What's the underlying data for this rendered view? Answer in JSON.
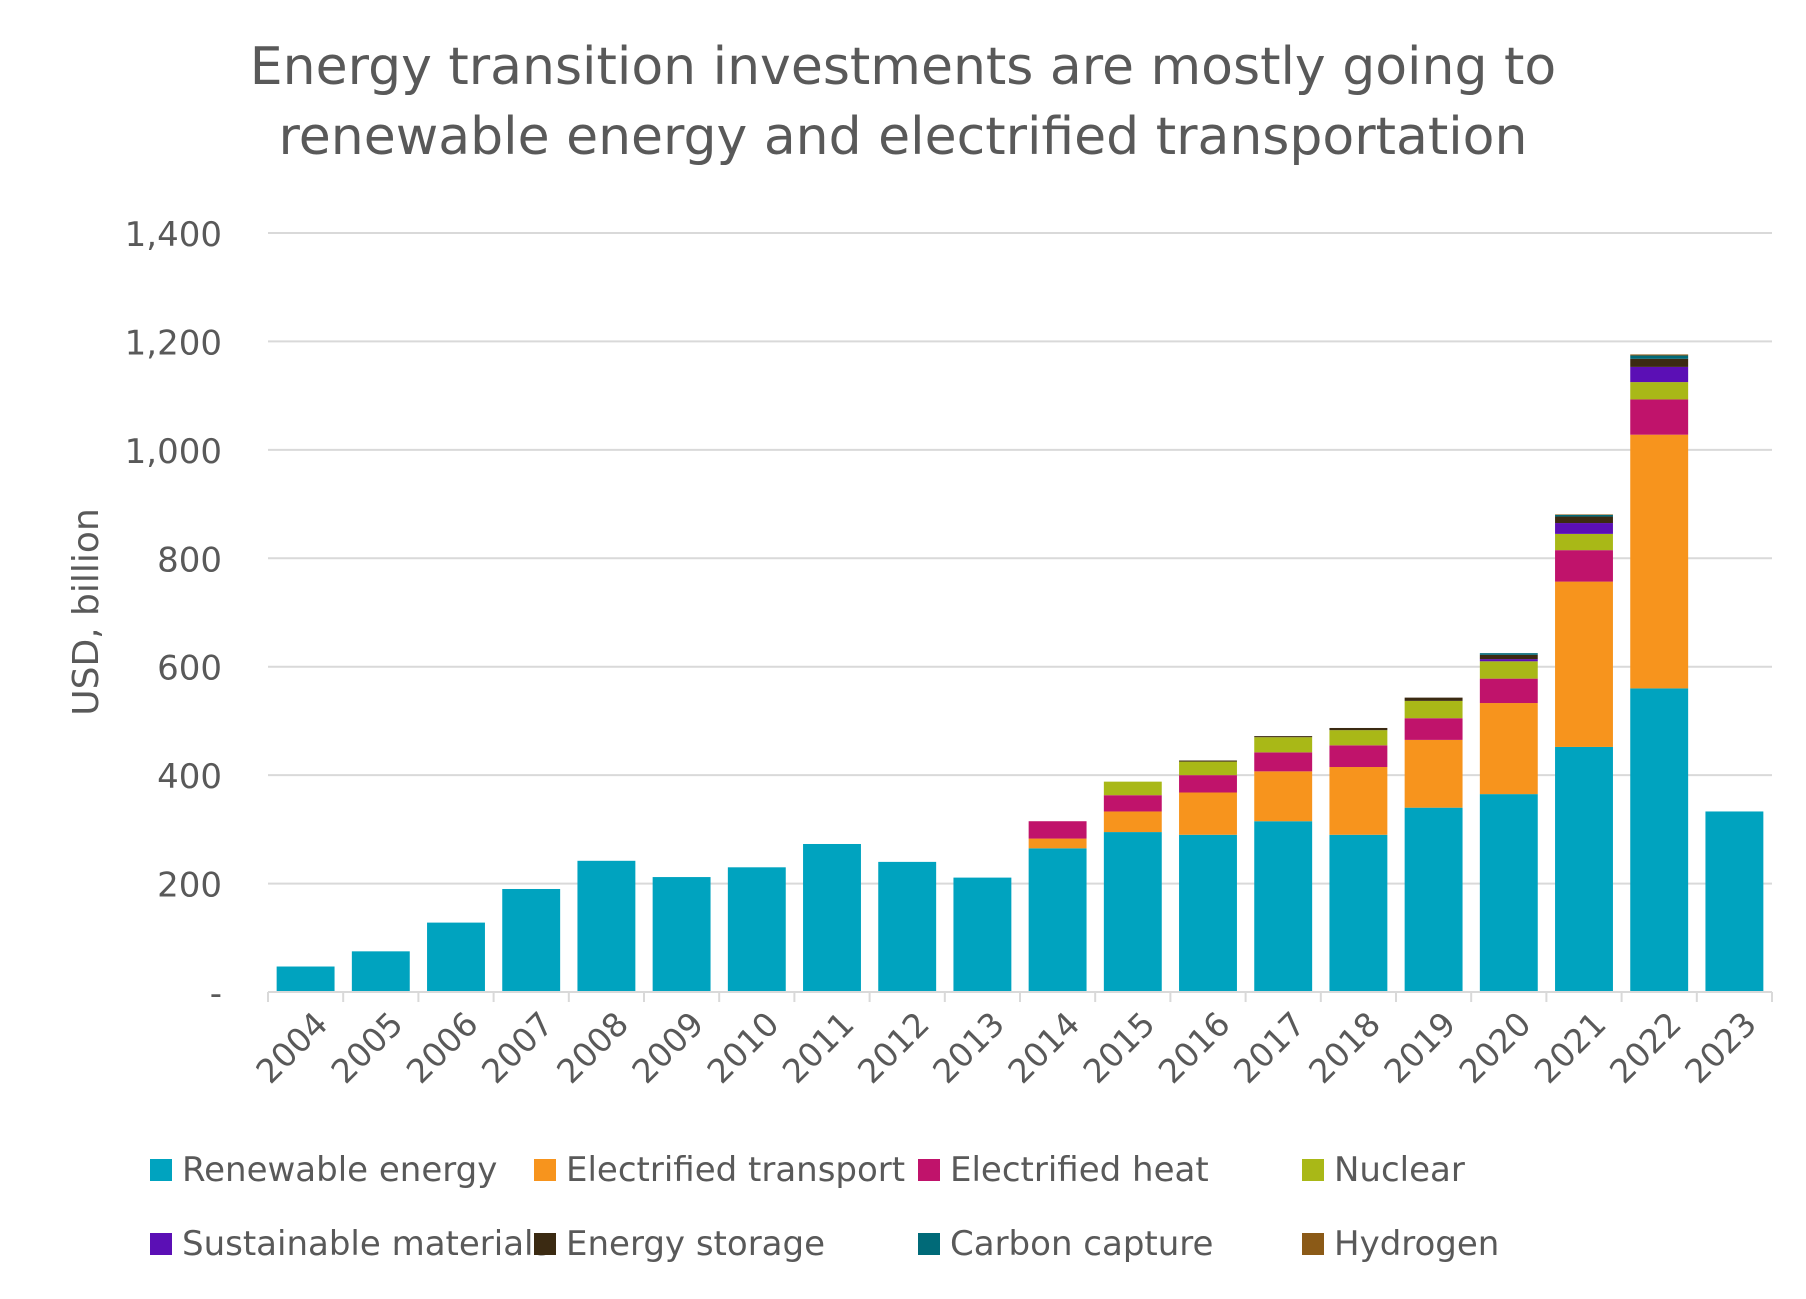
{
  "chart_data": {
    "type": "bar",
    "stacked": true,
    "title": "Energy transition investments are mostly going to renewable energy and electrified transportation",
    "title_lines": [
      "Energy transition investments are mostly going to",
      "renewable energy and electrified transportation"
    ],
    "xlabel": "",
    "ylabel": "USD, billion",
    "ylim": [
      0,
      1400
    ],
    "yticks": [
      0,
      200,
      400,
      600,
      800,
      1000,
      1200,
      1400
    ],
    "ytick_labels": [
      "-",
      "200",
      "400",
      "600",
      "800",
      "1,000",
      "1,200",
      "1,400"
    ],
    "grid": true,
    "legend_position": "bottom",
    "categories": [
      "2004",
      "2005",
      "2006",
      "2007",
      "2008",
      "2009",
      "2010",
      "2011",
      "2012",
      "2013",
      "2014",
      "2015",
      "2016",
      "2017",
      "2018",
      "2019",
      "2020",
      "2021",
      "2022",
      "2023"
    ],
    "series": [
      {
        "name": "Renewable energy",
        "color": "#00A3BF",
        "values": [
          47,
          75,
          128,
          190,
          242,
          212,
          230,
          273,
          240,
          211,
          265,
          295,
          290,
          315,
          290,
          340,
          365,
          452,
          560,
          333
        ]
      },
      {
        "name": "Electrified transport",
        "color": "#F7941D",
        "values": [
          0,
          0,
          0,
          0,
          0,
          0,
          0,
          0,
          0,
          0,
          18,
          38,
          78,
          92,
          125,
          125,
          168,
          305,
          468,
          0
        ]
      },
      {
        "name": "Electrified heat",
        "color": "#C0136B",
        "values": [
          0,
          0,
          0,
          0,
          0,
          0,
          0,
          0,
          0,
          0,
          32,
          30,
          32,
          35,
          40,
          40,
          45,
          58,
          65,
          0
        ]
      },
      {
        "name": "Nuclear",
        "color": "#A9B817",
        "values": [
          0,
          0,
          0,
          0,
          0,
          0,
          0,
          0,
          0,
          0,
          0,
          25,
          25,
          28,
          28,
          32,
          32,
          30,
          32,
          0
        ]
      },
      {
        "name": "Sustainable materials",
        "color": "#5B0FB5",
        "values": [
          0,
          0,
          0,
          0,
          0,
          0,
          0,
          0,
          0,
          0,
          0,
          0,
          0,
          0,
          0,
          0,
          4,
          20,
          28,
          0
        ]
      },
      {
        "name": "Energy storage",
        "color": "#3B2A12",
        "values": [
          0,
          0,
          0,
          0,
          0,
          0,
          0,
          0,
          0,
          0,
          0,
          0,
          2,
          2,
          4,
          6,
          8,
          12,
          15,
          0
        ]
      },
      {
        "name": "Carbon capture",
        "color": "#006A78",
        "values": [
          0,
          0,
          0,
          0,
          0,
          0,
          0,
          0,
          0,
          0,
          0,
          0,
          0,
          0,
          0,
          0,
          3,
          3,
          6,
          0
        ]
      },
      {
        "name": "Hydrogen",
        "color": "#8B5A17",
        "values": [
          0,
          0,
          0,
          0,
          0,
          0,
          0,
          0,
          0,
          0,
          0,
          0,
          0,
          0,
          0,
          0,
          0,
          1,
          2,
          0
        ]
      }
    ]
  }
}
